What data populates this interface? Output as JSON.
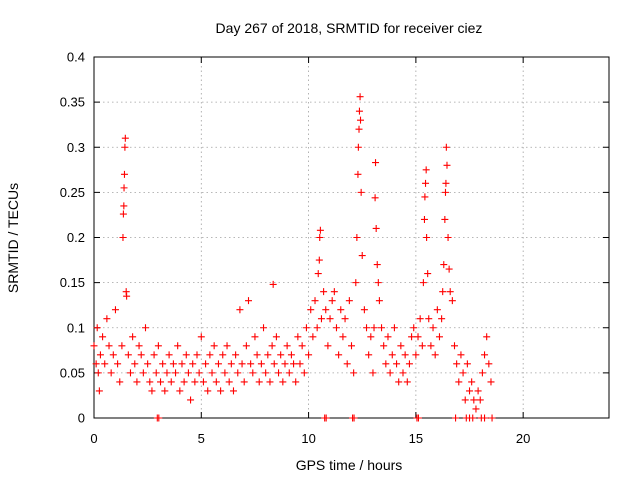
{
  "chart_data": {
    "type": "scatter",
    "title": "Day 267 of 2018, SRMTID for receiver ciez",
    "xlabel": "GPS time / hours",
    "ylabel": "SRMTID / TECUs",
    "xlim": [
      0,
      24
    ],
    "ylim": [
      0,
      0.4
    ],
    "xticks": [
      0,
      5,
      10,
      15,
      20
    ],
    "xtick_labels": [
      "0",
      "5",
      "10",
      "15",
      "20"
    ],
    "yticks": [
      0,
      0.05,
      0.1,
      0.15,
      0.2,
      0.25,
      0.3,
      0.35,
      0.4
    ],
    "ytick_labels": [
      "0",
      "0.05",
      "0.1",
      "0.15",
      "0.2",
      "0.25",
      "0.3",
      "0.35",
      "0.4"
    ],
    "grid": true,
    "marker": "+",
    "color": "#ff0000",
    "series": [
      {
        "name": "SRMTID",
        "points": [
          [
            0.0,
            0.08
          ],
          [
            0.1,
            0.06
          ],
          [
            0.15,
            0.1
          ],
          [
            0.2,
            0.05
          ],
          [
            0.25,
            0.03
          ],
          [
            0.3,
            0.07
          ],
          [
            0.4,
            0.09
          ],
          [
            0.5,
            0.06
          ],
          [
            0.6,
            0.11
          ],
          [
            0.7,
            0.08
          ],
          [
            0.8,
            0.05
          ],
          [
            0.9,
            0.07
          ],
          [
            1.0,
            0.12
          ],
          [
            1.1,
            0.06
          ],
          [
            1.2,
            0.04
          ],
          [
            1.3,
            0.08
          ],
          [
            1.35,
            0.2
          ],
          [
            1.37,
            0.226
          ],
          [
            1.39,
            0.235
          ],
          [
            1.4,
            0.255
          ],
          [
            1.42,
            0.27
          ],
          [
            1.44,
            0.3
          ],
          [
            1.46,
            0.31
          ],
          [
            1.5,
            0.14
          ],
          [
            1.52,
            0.135
          ],
          [
            1.6,
            0.07
          ],
          [
            1.7,
            0.05
          ],
          [
            1.8,
            0.09
          ],
          [
            1.9,
            0.06
          ],
          [
            2.0,
            0.04
          ],
          [
            2.1,
            0.08
          ],
          [
            2.2,
            0.07
          ],
          [
            2.3,
            0.05
          ],
          [
            2.4,
            0.1
          ],
          [
            2.5,
            0.06
          ],
          [
            2.6,
            0.04
          ],
          [
            2.7,
            0.03
          ],
          [
            2.8,
            0.07
          ],
          [
            2.9,
            0.05
          ],
          [
            3.0,
            0.08
          ],
          [
            3.1,
            0.04
          ],
          [
            3.2,
            0.06
          ],
          [
            3.3,
            0.03
          ],
          [
            3.4,
            0.05
          ],
          [
            3.5,
            0.07
          ],
          [
            3.6,
            0.04
          ],
          [
            3.7,
            0.06
          ],
          [
            3.8,
            0.05
          ],
          [
            3.9,
            0.08
          ],
          [
            4.0,
            0.03
          ],
          [
            4.1,
            0.06
          ],
          [
            4.2,
            0.04
          ],
          [
            4.3,
            0.07
          ],
          [
            4.4,
            0.05
          ],
          [
            4.5,
            0.02
          ],
          [
            4.6,
            0.06
          ],
          [
            4.7,
            0.04
          ],
          [
            4.8,
            0.07
          ],
          [
            4.9,
            0.05
          ],
          [
            5.0,
            0.09
          ],
          [
            5.1,
            0.04
          ],
          [
            5.2,
            0.06
          ],
          [
            5.3,
            0.03
          ],
          [
            5.4,
            0.07
          ],
          [
            5.5,
            0.05
          ],
          [
            5.6,
            0.08
          ],
          [
            5.7,
            0.04
          ],
          [
            5.8,
            0.06
          ],
          [
            5.9,
            0.03
          ],
          [
            6.0,
            0.07
          ],
          [
            6.1,
            0.05
          ],
          [
            6.2,
            0.08
          ],
          [
            6.3,
            0.04
          ],
          [
            6.4,
            0.06
          ],
          [
            6.5,
            0.03
          ],
          [
            6.6,
            0.07
          ],
          [
            6.7,
            0.05
          ],
          [
            6.8,
            0.12
          ],
          [
            6.9,
            0.06
          ],
          [
            7.0,
            0.04
          ],
          [
            7.1,
            0.08
          ],
          [
            7.2,
            0.13
          ],
          [
            7.3,
            0.06
          ],
          [
            7.4,
            0.05
          ],
          [
            7.5,
            0.09
          ],
          [
            7.6,
            0.07
          ],
          [
            7.7,
            0.04
          ],
          [
            7.8,
            0.06
          ],
          [
            7.9,
            0.1
          ],
          [
            8.0,
            0.05
          ],
          [
            8.1,
            0.07
          ],
          [
            8.2,
            0.04
          ],
          [
            8.3,
            0.08
          ],
          [
            8.35,
            0.148
          ],
          [
            8.4,
            0.06
          ],
          [
            8.5,
            0.09
          ],
          [
            8.6,
            0.05
          ],
          [
            8.7,
            0.07
          ],
          [
            8.8,
            0.04
          ],
          [
            8.9,
            0.06
          ],
          [
            9.0,
            0.08
          ],
          [
            9.1,
            0.05
          ],
          [
            9.2,
            0.07
          ],
          [
            9.3,
            0.06
          ],
          [
            9.4,
            0.04
          ],
          [
            9.5,
            0.09
          ],
          [
            9.6,
            0.06
          ],
          [
            9.7,
            0.08
          ],
          [
            9.8,
            0.05
          ],
          [
            9.9,
            0.1
          ],
          [
            10.0,
            0.07
          ],
          [
            10.1,
            0.12
          ],
          [
            10.2,
            0.09
          ],
          [
            10.3,
            0.13
          ],
          [
            10.4,
            0.1
          ],
          [
            10.45,
            0.16
          ],
          [
            10.5,
            0.175
          ],
          [
            10.52,
            0.2
          ],
          [
            10.55,
            0.208
          ],
          [
            10.6,
            0.11
          ],
          [
            10.7,
            0.14
          ],
          [
            10.8,
            0.12
          ],
          [
            10.9,
            0.08
          ],
          [
            11.0,
            0.11
          ],
          [
            11.1,
            0.13
          ],
          [
            11.2,
            0.14
          ],
          [
            11.3,
            0.1
          ],
          [
            11.4,
            0.07
          ],
          [
            11.5,
            0.12
          ],
          [
            11.6,
            0.09
          ],
          [
            11.7,
            0.11
          ],
          [
            11.8,
            0.06
          ],
          [
            11.9,
            0.13
          ],
          [
            12.0,
            0.08
          ],
          [
            12.1,
            0.05
          ],
          [
            12.2,
            0.15
          ],
          [
            12.25,
            0.2
          ],
          [
            12.3,
            0.27
          ],
          [
            12.32,
            0.3
          ],
          [
            12.35,
            0.32
          ],
          [
            12.37,
            0.34
          ],
          [
            12.4,
            0.356
          ],
          [
            12.42,
            0.33
          ],
          [
            12.45,
            0.25
          ],
          [
            12.5,
            0.18
          ],
          [
            12.6,
            0.12
          ],
          [
            12.7,
            0.1
          ],
          [
            12.8,
            0.07
          ],
          [
            12.9,
            0.09
          ],
          [
            13.0,
            0.05
          ],
          [
            13.05,
            0.1
          ],
          [
            13.1,
            0.244
          ],
          [
            13.12,
            0.283
          ],
          [
            13.15,
            0.21
          ],
          [
            13.2,
            0.17
          ],
          [
            13.25,
            0.15
          ],
          [
            13.3,
            0.13
          ],
          [
            13.4,
            0.1
          ],
          [
            13.5,
            0.08
          ],
          [
            13.6,
            0.06
          ],
          [
            13.7,
            0.09
          ],
          [
            13.8,
            0.05
          ],
          [
            13.9,
            0.07
          ],
          [
            14.0,
            0.1
          ],
          [
            14.1,
            0.06
          ],
          [
            14.2,
            0.04
          ],
          [
            14.3,
            0.08
          ],
          [
            14.4,
            0.05
          ],
          [
            14.5,
            0.07
          ],
          [
            14.6,
            0.04
          ],
          [
            14.7,
            0.06
          ],
          [
            14.8,
            0.09
          ],
          [
            14.9,
            0.1
          ],
          [
            15.0,
            0.07
          ],
          [
            15.1,
            0.09
          ],
          [
            15.2,
            0.11
          ],
          [
            15.3,
            0.08
          ],
          [
            15.35,
            0.15
          ],
          [
            15.4,
            0.22
          ],
          [
            15.42,
            0.245
          ],
          [
            15.45,
            0.26
          ],
          [
            15.48,
            0.275
          ],
          [
            15.5,
            0.2
          ],
          [
            15.55,
            0.16
          ],
          [
            15.6,
            0.11
          ],
          [
            15.7,
            0.08
          ],
          [
            15.8,
            0.1
          ],
          [
            15.9,
            0.07
          ],
          [
            16.0,
            0.12
          ],
          [
            16.1,
            0.09
          ],
          [
            16.2,
            0.11
          ],
          [
            16.25,
            0.14
          ],
          [
            16.3,
            0.17
          ],
          [
            16.35,
            0.22
          ],
          [
            16.38,
            0.25
          ],
          [
            16.4,
            0.26
          ],
          [
            16.42,
            0.3
          ],
          [
            16.45,
            0.28
          ],
          [
            16.5,
            0.2
          ],
          [
            16.55,
            0.165
          ],
          [
            16.6,
            0.14
          ],
          [
            16.7,
            0.13
          ],
          [
            16.8,
            0.08
          ],
          [
            16.9,
            0.06
          ],
          [
            17.0,
            0.04
          ],
          [
            17.1,
            0.07
          ],
          [
            17.2,
            0.05
          ],
          [
            17.3,
            0.02
          ],
          [
            17.4,
            0.06
          ],
          [
            17.5,
            0.03
          ],
          [
            17.6,
            0.04
          ],
          [
            17.7,
            0.02
          ],
          [
            17.8,
            0.01
          ],
          [
            17.9,
            0.03
          ],
          [
            18.0,
            0.02
          ],
          [
            18.1,
            0.05
          ],
          [
            18.2,
            0.07
          ],
          [
            18.3,
            0.09
          ],
          [
            18.4,
            0.06
          ],
          [
            18.5,
            0.04
          ],
          [
            2.95,
            0.0
          ],
          [
            3.02,
            0.0
          ],
          [
            10.75,
            0.0
          ],
          [
            10.82,
            0.0
          ],
          [
            12.05,
            0.0
          ],
          [
            12.12,
            0.0
          ],
          [
            15.05,
            0.0
          ],
          [
            15.12,
            0.0
          ],
          [
            16.85,
            0.0
          ],
          [
            17.35,
            0.0
          ],
          [
            17.5,
            0.0
          ],
          [
            17.65,
            0.0
          ],
          [
            18.05,
            0.0
          ],
          [
            18.2,
            0.0
          ],
          [
            18.55,
            0.0
          ]
        ]
      }
    ]
  }
}
